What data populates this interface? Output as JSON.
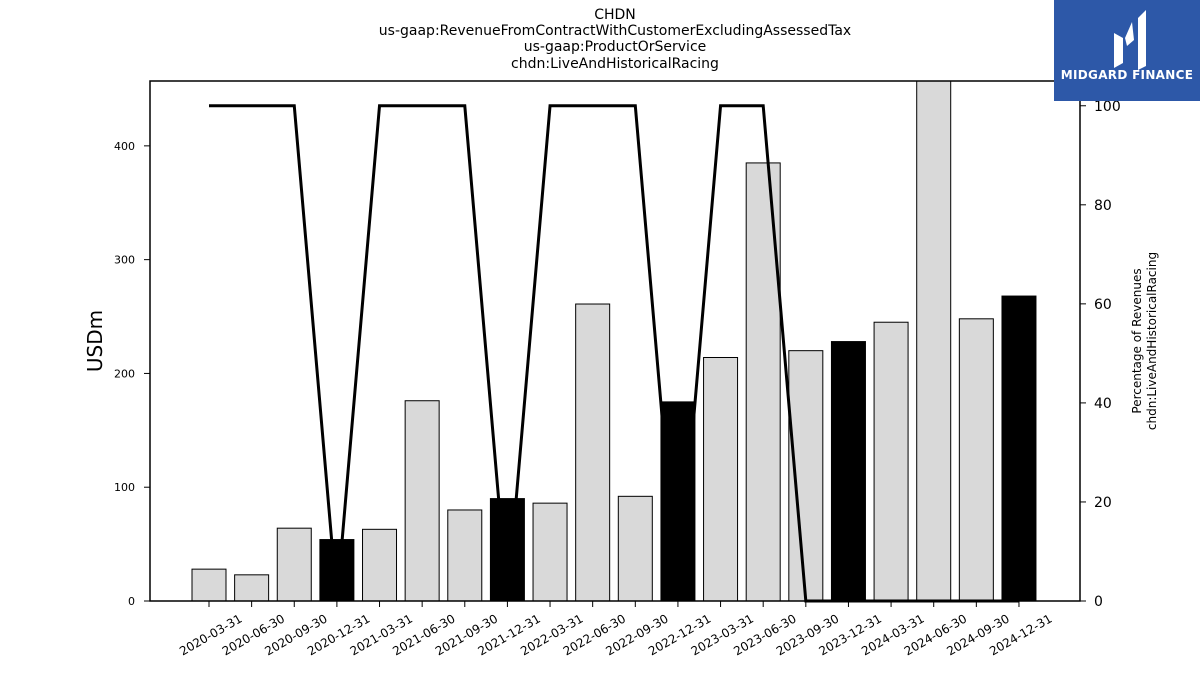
{
  "title_lines": [
    "CHDN",
    "us-gaap:RevenueFromContractWithCustomerExcludingAssessedTax",
    "us-gaap:ProductOrService",
    "chdn:LiveAndHistoricalRacing"
  ],
  "logo": {
    "text": "MIDGARD FINANCE",
    "color": "#2d58a8"
  },
  "chart_data": {
    "type": "bar",
    "categories": [
      "2020-03-31",
      "2020-06-30",
      "2020-09-30",
      "2020-12-31",
      "2021-03-31",
      "2021-06-30",
      "2021-09-30",
      "2021-12-31",
      "2022-03-31",
      "2022-06-30",
      "2022-09-30",
      "2022-12-31",
      "2023-03-31",
      "2023-06-30",
      "2023-09-30",
      "2023-12-31",
      "2024-03-31",
      "2024-06-30",
      "2024-09-30",
      "2024-12-31"
    ],
    "series": [
      {
        "axis": "left",
        "values": [
          28,
          23,
          64,
          54,
          63,
          176,
          80,
          90,
          86,
          261,
          92,
          175,
          214,
          385,
          220,
          228,
          245,
          460,
          248,
          268
        ],
        "fill_quarterly": "#d9d9d9",
        "fill_year_end": "#000000"
      },
      {
        "axis": "right",
        "type": "line",
        "values": [
          100,
          100,
          100,
          0,
          100,
          100,
          100,
          0,
          100,
          100,
          100,
          0,
          100,
          100,
          0,
          0,
          0,
          0,
          0,
          0
        ],
        "color": "#000000"
      }
    ],
    "ylabel": "USDm",
    "ylabel_right": [
      "Percentage of Revenues",
      "chdn:LiveAndHistoricalRacing"
    ],
    "ylim": [
      0,
      457
    ],
    "ylim_right": [
      0,
      105
    ],
    "yticks": [
      0,
      100,
      200,
      300,
      400
    ],
    "yticks_right": [
      0,
      20,
      40,
      60,
      80,
      100
    ],
    "grid": false
  }
}
